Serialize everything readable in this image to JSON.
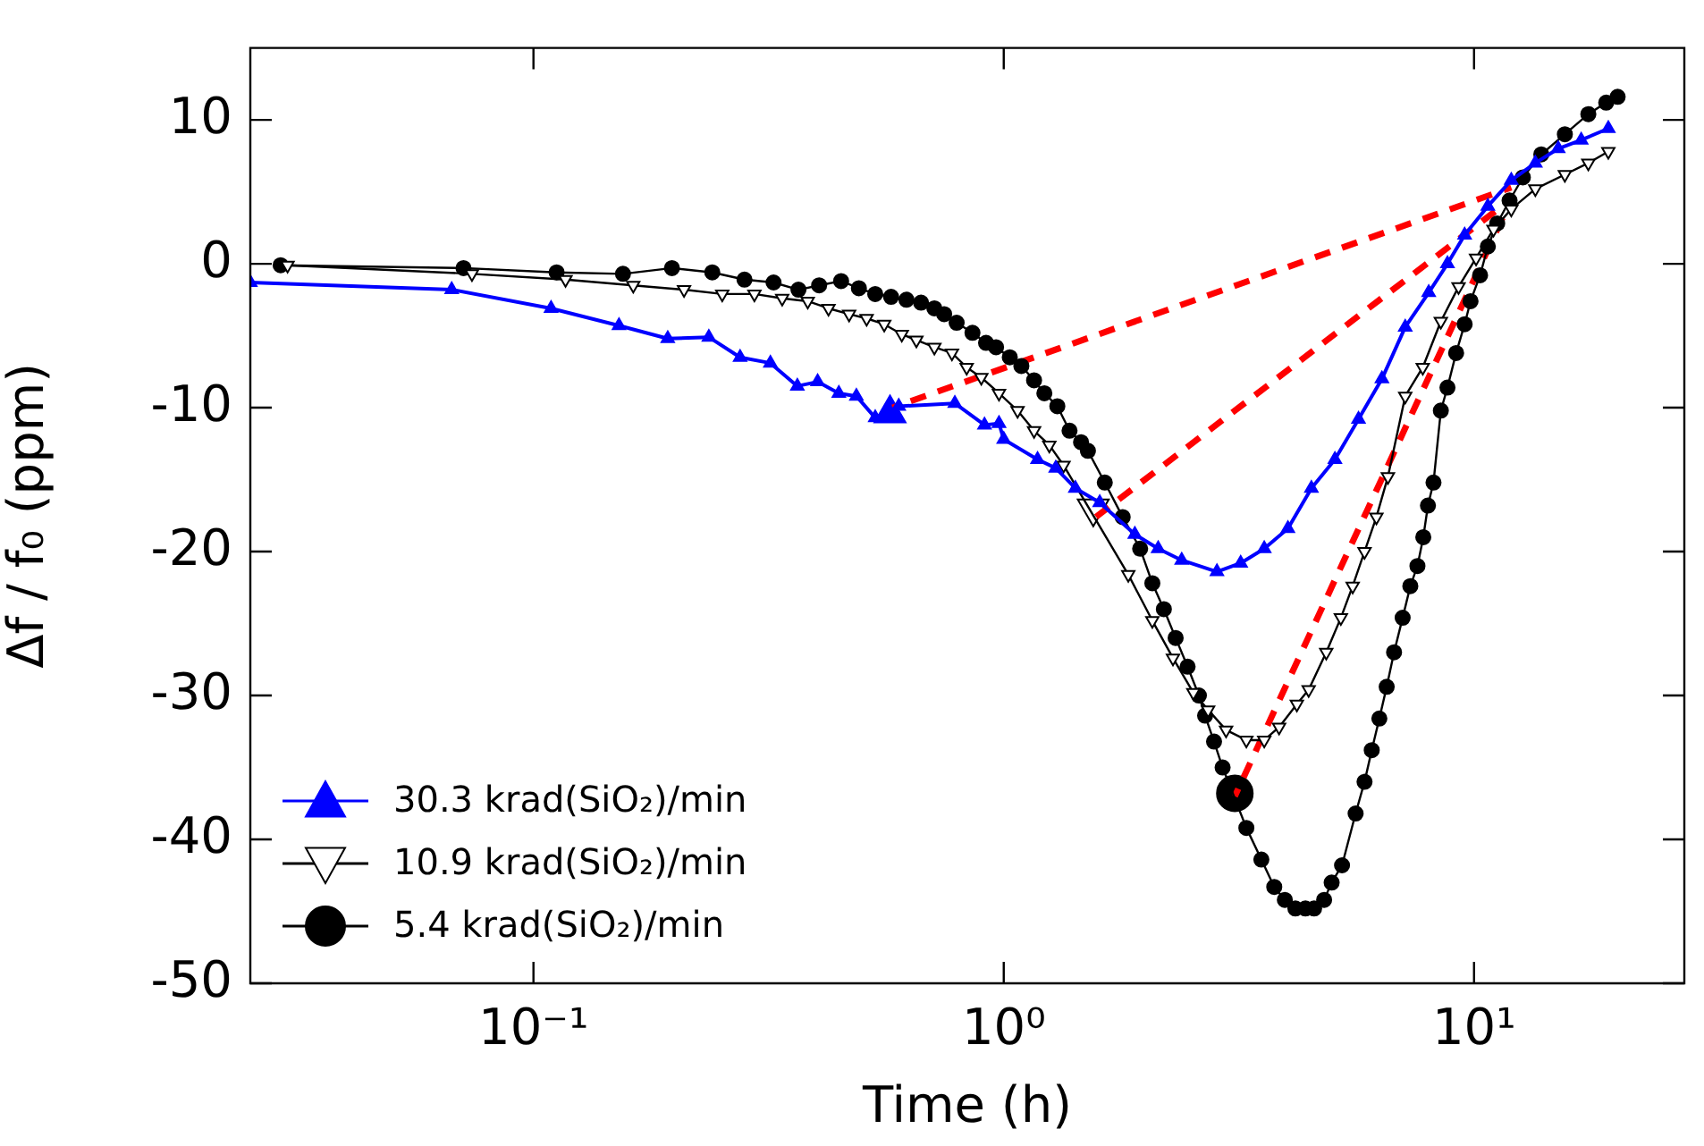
{
  "chart_data": {
    "type": "line",
    "xlabel": "Time (h)",
    "ylabel": "Δf / f₀ (ppm)",
    "log": "x",
    "grid": false,
    "legend": "bottom left",
    "xlim": [
      0.025,
      28
    ],
    "xticks": [
      {
        "value": 0.1,
        "label": "10⁻¹"
      },
      {
        "value": 1,
        "label": "10⁰"
      },
      {
        "value": 10,
        "label": "10¹"
      }
    ],
    "ylim": [
      -50,
      15
    ],
    "yticks": [
      10,
      0,
      -10,
      -20,
      -30,
      -40,
      -50
    ],
    "series": [
      {
        "name": "30.3 krad(SiO₂)/min",
        "color": "#0000ff",
        "marker": "triangle",
        "x": [
          0.025,
          0.067,
          0.109,
          0.152,
          0.193,
          0.236,
          0.275,
          0.319,
          0.364,
          0.402,
          0.446,
          0.486,
          0.533,
          0.598,
          0.787,
          0.91,
          0.977,
          1.0,
          1.18,
          1.29,
          1.42,
          1.6,
          1.9,
          2.13,
          2.39,
          2.84,
          3.19,
          3.58,
          4.02,
          4.51,
          5.06,
          5.68,
          6.37,
          7.14,
          8.01,
          8.78,
          9.55,
          10.7,
          12.0,
          13.5,
          15.1,
          16.9,
          19.3
        ],
        "values": [
          -1.3,
          -1.8,
          -3.1,
          -4.3,
          -5.2,
          -5.1,
          -6.5,
          -6.9,
          -8.5,
          -8.2,
          -9.0,
          -9.2,
          -10.7,
          -9.9,
          -9.7,
          -11.2,
          -11.1,
          -12.2,
          -13.6,
          -14.2,
          -15.6,
          -16.6,
          -18.8,
          -19.8,
          -20.6,
          -21.4,
          -20.8,
          -19.8,
          -18.4,
          -15.6,
          -13.6,
          -10.8,
          -8.0,
          -4.4,
          -2.0,
          0,
          2.0,
          4.0,
          5.8,
          7.0,
          8.0,
          8.6,
          9.4
        ]
      },
      {
        "name": "10.9 krad(SiO₂)/min",
        "color": "#000000",
        "marker": "triangle-down",
        "x": [
          0.03,
          0.074,
          0.117,
          0.163,
          0.209,
          0.252,
          0.295,
          0.338,
          0.383,
          0.424,
          0.469,
          0.511,
          0.557,
          0.607,
          0.652,
          0.712,
          0.776,
          0.834,
          0.896,
          0.977,
          1.07,
          1.16,
          1.25,
          1.34,
          1.44,
          1.84,
          2.07,
          2.29,
          2.53,
          2.72,
          2.97,
          3.28,
          3.58,
          3.85,
          4.2,
          4.45,
          4.85,
          5.21,
          5.52,
          5.85,
          6.2,
          6.56,
          7.14,
          7.78,
          8.5,
          9.27,
          10.1,
          11.0,
          12.0,
          13.5,
          15.6,
          17.5,
          19.3
        ],
        "values": [
          -0.1,
          -0.7,
          -1.1,
          -1.5,
          -1.8,
          -2.1,
          -2.1,
          -2.4,
          -2.6,
          -3.1,
          -3.5,
          -3.8,
          -4.2,
          -4.9,
          -5.3,
          -5.8,
          -6.2,
          -7.2,
          -7.9,
          -9.0,
          -10.2,
          -11.6,
          -12.6,
          -14.0,
          null,
          -21.6,
          -24.8,
          -27.4,
          -29.8,
          -31.0,
          -32.4,
          -33.1,
          -33.1,
          -32.2,
          -30.6,
          -29.6,
          -27.0,
          -24.6,
          -22.4,
          -20.0,
          -17.6,
          -14.8,
          -9.2,
          -7.2,
          -4.0,
          -1.6,
          0.4,
          2.4,
          3.8,
          5.2,
          6.2,
          7.0,
          7.8
        ]
      },
      {
        "name": "5.4 krad(SiO₂)/min",
        "color": "#000000",
        "marker": "circle",
        "x": [
          0.029,
          0.071,
          0.112,
          0.155,
          0.197,
          0.24,
          0.281,
          0.324,
          0.366,
          0.405,
          0.451,
          0.492,
          0.533,
          0.576,
          0.621,
          0.667,
          0.712,
          0.747,
          0.794,
          0.858,
          0.917,
          0.963,
          1.03,
          1.09,
          1.16,
          1.22,
          1.3,
          1.38,
          1.46,
          1.51,
          1.64,
          1.79,
          1.95,
          2.07,
          2.19,
          2.32,
          2.46,
          2.6,
          2.68,
          2.8,
          2.92,
          3.28,
          3.53,
          3.76,
          3.96,
          4.17,
          4.38,
          4.57,
          4.8,
          4.98,
          5.24,
          5.6,
          5.85,
          6.06,
          6.29,
          6.52,
          6.76,
          7.05,
          7.32,
          7.58,
          7.8,
          7.98,
          8.2,
          8.5,
          8.78,
          9.16,
          9.55,
          9.83,
          10.3,
          10.7,
          11.2,
          11.9,
          12.7,
          13.9,
          15.6,
          17.5,
          19.1,
          20.2
        ],
        "values": [
          -0.1,
          -0.3,
          -0.6,
          -0.7,
          -0.3,
          -0.6,
          -1.1,
          -1.3,
          -1.8,
          -1.5,
          -1.2,
          -1.7,
          -2.1,
          -2.3,
          -2.5,
          -2.7,
          -3.1,
          -3.5,
          -4.1,
          -4.8,
          -5.5,
          -5.8,
          -6.5,
          -7.1,
          -8.1,
          -9.0,
          -9.9,
          -11.6,
          -12.4,
          -13.0,
          -15.2,
          -17.6,
          -19.8,
          -22.2,
          -24.0,
          -26.0,
          -28.0,
          -30.0,
          -31.4,
          -33.2,
          -35.0,
          -39.2,
          -41.4,
          -43.3,
          -44.2,
          -44.8,
          -44.8,
          -44.8,
          -44.2,
          -43.0,
          -41.8,
          -38.2,
          -36.0,
          -33.8,
          -31.6,
          -29.4,
          -27.0,
          -24.6,
          -22.4,
          -21.0,
          -19.0,
          -16.8,
          -15.2,
          -10.2,
          -8.6,
          -6.2,
          -4.2,
          -2.6,
          -0.8,
          1.2,
          2.8,
          4.4,
          6.0,
          7.6,
          9.0,
          10.4,
          11.2,
          11.6
        ]
      },
      {
        "type": "line",
        "color": "#ff0000",
        "line_style": "dashed",
        "marker": "none",
        "x": [
          0.58,
          12.0
        ],
        "values": [
          -10.0,
          5.3
        ]
      },
      {
        "type": "line",
        "color": "#ff0000",
        "line_style": "dashed",
        "marker": "none",
        "x": [
          1.57,
          12.0
        ],
        "values": [
          -17.6,
          4.5
        ]
      },
      {
        "type": "line",
        "color": "#ff0000",
        "line_style": "dashed",
        "marker": "none",
        "x": [
          3.1,
          12.0
        ],
        "values": [
          -37.0,
          4.5
        ]
      },
      {
        "type": "scatter",
        "color": "#0000ff",
        "marker": "triangle",
        "x": [
          0.573
        ],
        "values": [
          -10.4
        ]
      },
      {
        "type": "scatter",
        "color": "#000000",
        "marker": "triangle-down",
        "x": [
          1.55
        ],
        "values": [
          -17.0
        ]
      },
      {
        "type": "scatter",
        "color": "#000000",
        "marker": "circle",
        "x": [
          3.1
        ],
        "values": [
          -36.8
        ]
      }
    ]
  }
}
